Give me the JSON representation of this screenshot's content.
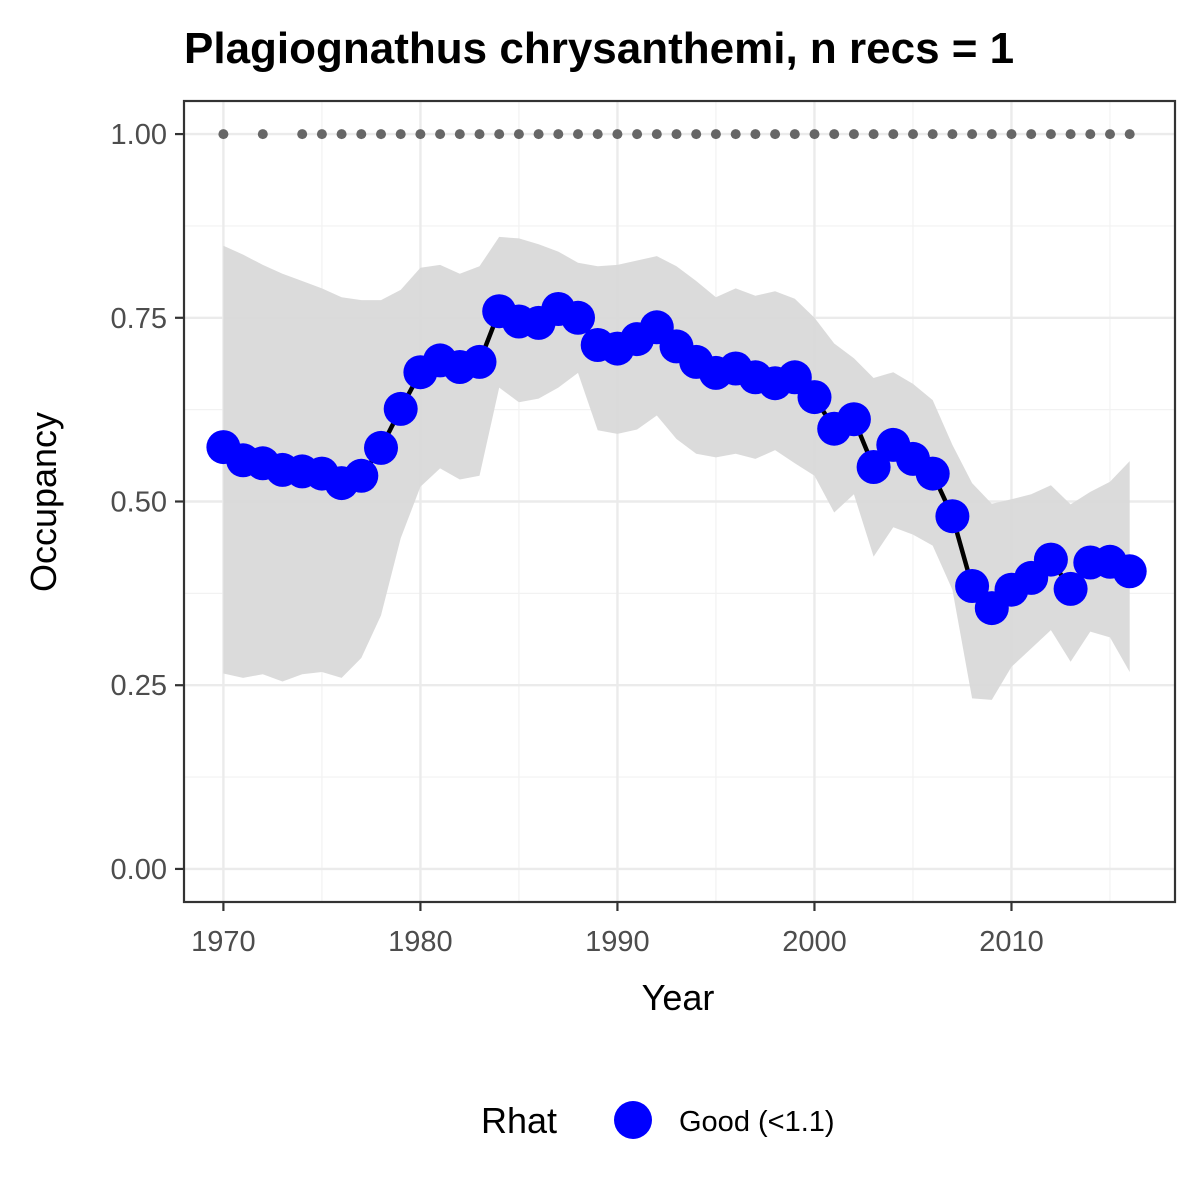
{
  "chart_data": {
    "type": "line",
    "title": "Plagiognathus chrysanthemi, n recs = 1",
    "xlabel": "Year",
    "ylabel": "Occupancy",
    "xlim": [
      1968,
      2018.3
    ],
    "ylim": [
      -0.045,
      1.045
    ],
    "x_ticks": [
      1970,
      1980,
      1990,
      2000,
      2010
    ],
    "x_tick_labels": [
      "1970",
      "1980",
      "1990",
      "2000",
      "2010"
    ],
    "y_ticks": [
      0,
      0.25,
      0.5,
      0.75,
      1
    ],
    "y_tick_labels": [
      "0.00",
      "0.25",
      "0.50",
      "0.75",
      "1.00"
    ],
    "grid": true,
    "legend": {
      "position": "bottom",
      "title": "Rhat",
      "entries": [
        {
          "label": "Good (<1.1)",
          "color": "#0000ff"
        }
      ]
    },
    "colors": {
      "point": "#0000ff",
      "line": "#000000",
      "ribbon": "#d9d9d9",
      "record_dots": "#666666"
    },
    "years": [
      1970,
      1971,
      1972,
      1973,
      1974,
      1975,
      1976,
      1977,
      1978,
      1979,
      1980,
      1981,
      1982,
      1983,
      1984,
      1985,
      1986,
      1987,
      1988,
      1989,
      1990,
      1991,
      1992,
      1993,
      1994,
      1995,
      1996,
      1997,
      1998,
      1999,
      2000,
      2001,
      2002,
      2003,
      2004,
      2005,
      2006,
      2007,
      2008,
      2009,
      2010,
      2011,
      2012,
      2013,
      2014,
      2015,
      2016
    ],
    "occupancy": [
      0.574,
      0.556,
      0.552,
      0.543,
      0.541,
      0.538,
      0.525,
      0.535,
      0.573,
      0.626,
      0.676,
      0.692,
      0.683,
      0.69,
      0.759,
      0.745,
      0.743,
      0.762,
      0.75,
      0.713,
      0.708,
      0.721,
      0.737,
      0.711,
      0.69,
      0.675,
      0.681,
      0.669,
      0.661,
      0.669,
      0.642,
      0.599,
      0.612,
      0.547,
      0.577,
      0.558,
      0.538,
      0.48,
      0.385,
      0.355,
      0.38,
      0.396,
      0.421,
      0.381,
      0.417,
      0.418,
      0.405
    ],
    "ci_upper": [
      0.848,
      0.836,
      0.822,
      0.81,
      0.8,
      0.79,
      0.778,
      0.774,
      0.774,
      0.788,
      0.818,
      0.822,
      0.81,
      0.82,
      0.86,
      0.858,
      0.85,
      0.84,
      0.825,
      0.82,
      0.822,
      0.828,
      0.834,
      0.82,
      0.8,
      0.778,
      0.79,
      0.78,
      0.786,
      0.776,
      0.75,
      0.715,
      0.695,
      0.668,
      0.676,
      0.66,
      0.638,
      0.577,
      0.525,
      0.497,
      0.503,
      0.51,
      0.522,
      0.496,
      0.513,
      0.527,
      0.555
    ],
    "ci_lower": [
      0.266,
      0.26,
      0.265,
      0.255,
      0.265,
      0.268,
      0.26,
      0.287,
      0.345,
      0.45,
      0.52,
      0.545,
      0.53,
      0.535,
      0.655,
      0.635,
      0.64,
      0.655,
      0.675,
      0.597,
      0.592,
      0.598,
      0.617,
      0.585,
      0.565,
      0.56,
      0.565,
      0.558,
      0.57,
      0.552,
      0.535,
      0.485,
      0.51,
      0.425,
      0.465,
      0.455,
      0.44,
      0.38,
      0.232,
      0.23,
      0.275,
      0.3,
      0.325,
      0.282,
      0.323,
      0.315,
      0.268
    ],
    "record_years": [
      1970,
      1972,
      1974,
      1975,
      1976,
      1977,
      1978,
      1979,
      1980,
      1981,
      1982,
      1983,
      1984,
      1985,
      1986,
      1987,
      1988,
      1989,
      1990,
      1991,
      1992,
      1993,
      1994,
      1995,
      1996,
      1997,
      1998,
      1999,
      2000,
      2001,
      2002,
      2003,
      2004,
      2005,
      2006,
      2007,
      2008,
      2009,
      2010,
      2011,
      2012,
      2013,
      2014,
      2015,
      2016
    ],
    "record_value": 1
  }
}
